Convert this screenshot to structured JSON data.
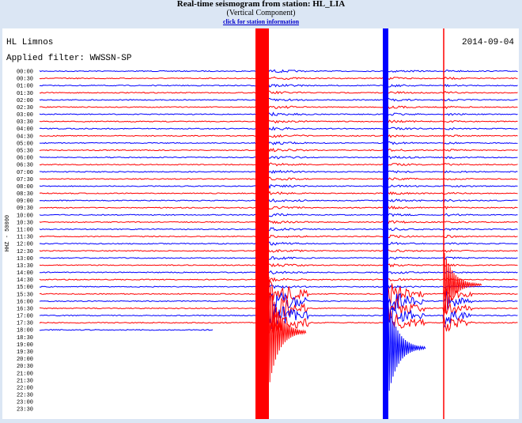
{
  "header": {
    "title": "Real-time seismogram from station: HL_LIA",
    "subtitle": "(Vertical Component)",
    "link": "click for station information"
  },
  "plot": {
    "station": "HL Limnos",
    "date": "2014-09-04",
    "filter": "Applied filter: WWSSN-SP",
    "channel": "HHZ - 50000",
    "times": [
      "00:00",
      "00:30",
      "01:00",
      "01:30",
      "02:00",
      "02:30",
      "03:00",
      "03:30",
      "04:00",
      "04:30",
      "05:00",
      "05:30",
      "06:00",
      "06:30",
      "07:00",
      "07:30",
      "08:00",
      "08:30",
      "09:00",
      "09:30",
      "10:00",
      "10:30",
      "11:00",
      "11:30",
      "12:00",
      "12:30",
      "13:00",
      "13:30",
      "14:00",
      "14:30",
      "15:00",
      "15:30",
      "16:00",
      "16:30",
      "17:00",
      "17:30",
      "18:00",
      "18:30",
      "19:00",
      "19:30",
      "20:00",
      "20:30",
      "21:00",
      "21:30",
      "22:00",
      "22:30",
      "23:00",
      "23:30"
    ]
  }
}
